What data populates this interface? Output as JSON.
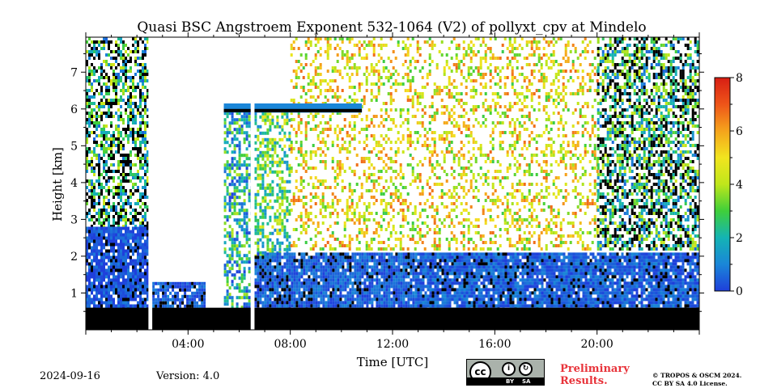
{
  "title": "Quasi BSC Angstroem Exponent 532-1064 (V2) of pollyxt_cpv at Mindelo",
  "footer": {
    "date": "2024-09-16",
    "version": "Version: 4.0",
    "preliminary_line1": "Preliminary",
    "preliminary_line2": "Results.",
    "copyright_line1": "© TROPOS & OSCM 2024.",
    "copyright_line2": "CC BY SA 4.0 License.",
    "license_badge": {
      "cc": "cc",
      "by": "BY",
      "sa": "SA"
    }
  },
  "chart_data": {
    "type": "heatmap",
    "title": "Quasi BSC Angstroem Exponent 532-1064 (V2) of pollyxt_cpv at Mindelo",
    "xlabel": "Time [UTC]",
    "ylabel": "Height [km]",
    "x_unit": "hours UTC",
    "xlim": [
      0,
      24
    ],
    "ylim": [
      0,
      7.95
    ],
    "x_ticks": [
      {
        "value": 4,
        "label": "04:00"
      },
      {
        "value": 8,
        "label": "08:00"
      },
      {
        "value": 12,
        "label": "12:00"
      },
      {
        "value": 16,
        "label": "16:00"
      },
      {
        "value": 20,
        "label": "20:00"
      }
    ],
    "y_ticks": [
      {
        "value": 1,
        "label": "1"
      },
      {
        "value": 2,
        "label": "2"
      },
      {
        "value": 3,
        "label": "3"
      },
      {
        "value": 4,
        "label": "4"
      },
      {
        "value": 5,
        "label": "5"
      },
      {
        "value": 6,
        "label": "6"
      },
      {
        "value": 7,
        "label": "7"
      }
    ],
    "colorbar": {
      "range": [
        0,
        8
      ],
      "ticks": [
        {
          "value": 0,
          "label": "0"
        },
        {
          "value": 2,
          "label": "2"
        },
        {
          "value": 4,
          "label": "4"
        },
        {
          "value": 6,
          "label": "6"
        },
        {
          "value": 8,
          "label": "8"
        }
      ],
      "colormap": [
        "#1f3fdb",
        "#1a86d8",
        "#14b4b4",
        "#3fcf3a",
        "#bfe61b",
        "#f2e51f",
        "#f5a41c",
        "#ee5519",
        "#d81e14"
      ]
    },
    "grid": false,
    "field": {
      "description_values": "Angstroem exponent per time/height cell; black = below signal / near-surface, white = no data",
      "no_data_periods_hours": [
        [
          2.45,
          2.6
        ],
        [
          6.45,
          6.6
        ]
      ],
      "boundary_layer_top_km": 2.1,
      "near_surface_black_top_km": 0.6,
      "cloud_layer": {
        "from_hour": 5.4,
        "to_hour": 10.8,
        "height_km": 6.0
      },
      "regions": [
        {
          "from_hour": 0.0,
          "to_hour": 2.4,
          "from_km": 2.8,
          "to_km": 7.95,
          "value": 2.5,
          "style": "speckled dark"
        },
        {
          "from_hour": 0.0,
          "to_hour": 2.4,
          "from_km": 0.6,
          "to_km": 2.8,
          "value": 0.3,
          "style": "dense"
        },
        {
          "from_hour": 2.6,
          "to_hour": 4.6,
          "from_km": 0.6,
          "to_km": 1.3,
          "value": 0.4,
          "style": "dense"
        },
        {
          "from_hour": 5.4,
          "to_hour": 6.5,
          "from_km": 0.6,
          "to_km": 6.1,
          "value": 2.0,
          "style": "speckled"
        },
        {
          "from_hour": 6.6,
          "to_hour": 8.0,
          "from_km": 2.0,
          "to_km": 6.0,
          "value": 3.0,
          "style": "speckled"
        },
        {
          "from_hour": 8.0,
          "to_hour": 20.0,
          "from_km": 2.2,
          "to_km": 7.95,
          "value": 4.8,
          "style": "sparse"
        },
        {
          "from_hour": 6.6,
          "to_hour": 24.0,
          "from_km": 0.6,
          "to_km": 2.1,
          "value": 0.5,
          "style": "dense"
        },
        {
          "from_hour": 20.0,
          "to_hour": 24.0,
          "from_km": 2.2,
          "to_km": 7.95,
          "value": 2.5,
          "style": "speckled dark"
        }
      ]
    }
  }
}
